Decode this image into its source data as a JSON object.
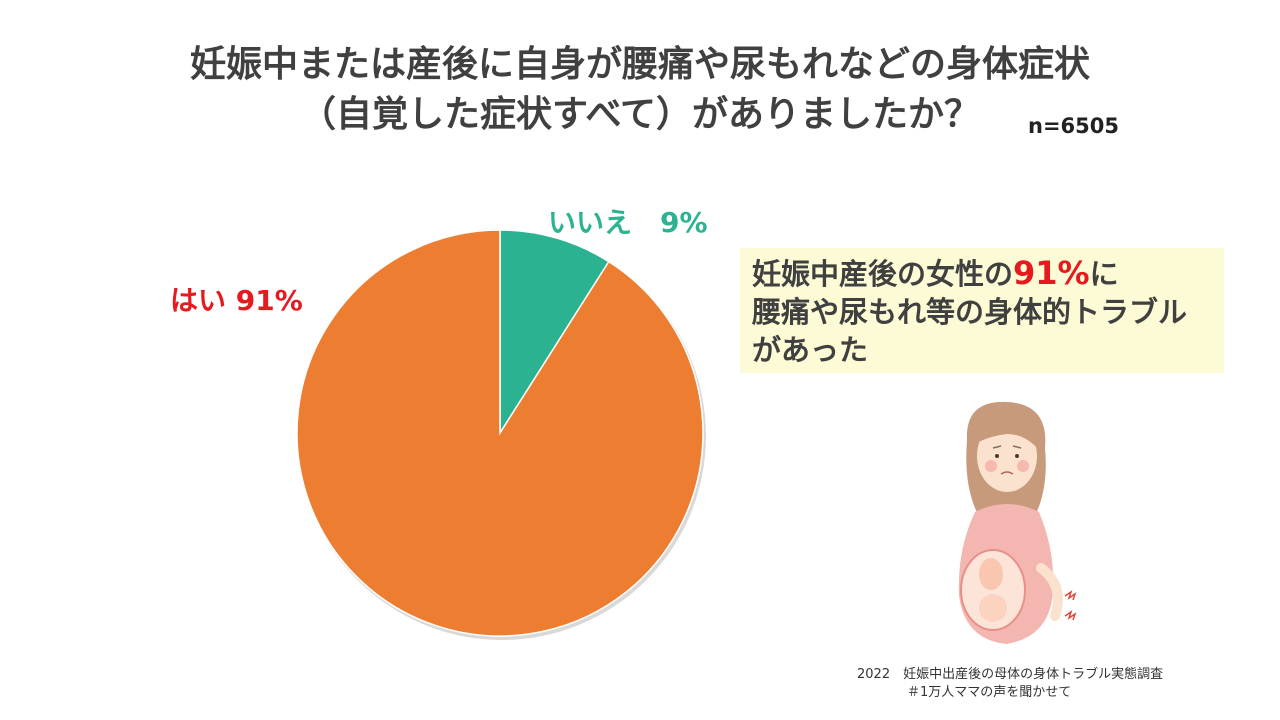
{
  "title": {
    "line1": "妊娠中または産後に自身が腰痛や尿もれなどの身体症状",
    "line2": "（自覚した症状すべて）がありましたか？"
  },
  "sample_size": "n=6505",
  "chart_data": {
    "type": "pie",
    "slices": [
      {
        "label": "いいえ",
        "value": 9,
        "display": "いいえ　9%",
        "color": "#2bb391"
      },
      {
        "label": "はい",
        "value": 91,
        "display": "はい 91%",
        "color": "#ed7d31"
      }
    ],
    "label_colors": {
      "いいえ": "#2bb391",
      "はい": "#e6191f"
    }
  },
  "callout": {
    "line1_pre": "妊娠中産後の女性の",
    "line1_highlight": "91%",
    "line1_post": "に",
    "line2": "腰痛や尿もれ等の身体的トラブル",
    "line3": "があった"
  },
  "source": {
    "year": "2022",
    "line1": "妊娠中出産後の母体の身体トラブル実態調査",
    "line2": "＃1万人ママの声を聞かせて"
  }
}
